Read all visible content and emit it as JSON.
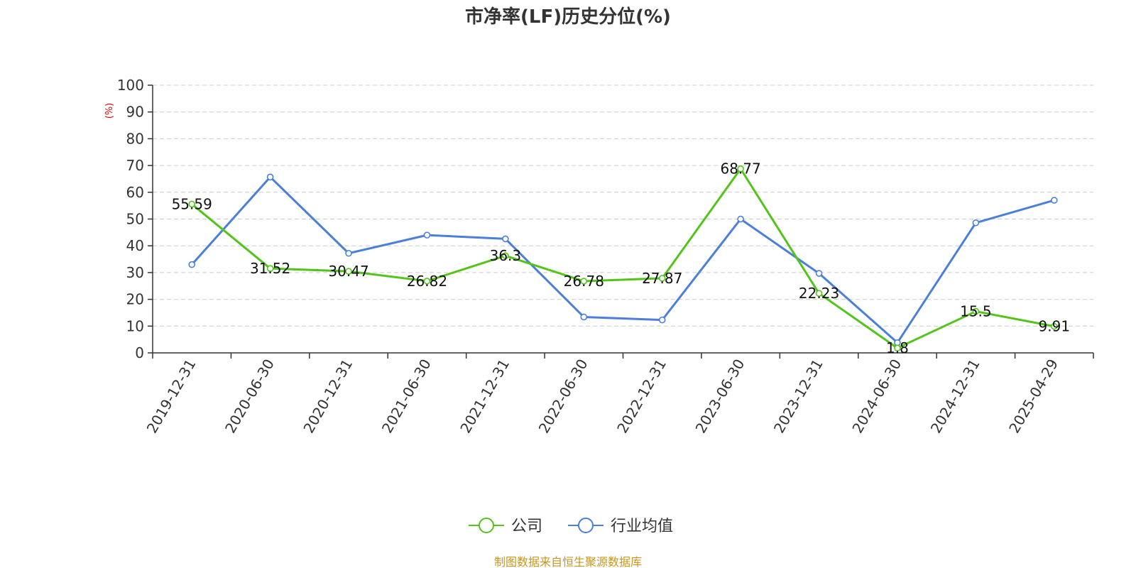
{
  "chart_data": {
    "type": "line",
    "title": "市净率(LF)历史分位(%)",
    "ylabel": "(%)",
    "xlabel": "",
    "ylim": [
      0,
      100
    ],
    "yticks": [
      0,
      10,
      20,
      30,
      40,
      50,
      60,
      70,
      80,
      90,
      100
    ],
    "grid": true,
    "legend_position": "bottom-center",
    "categories": [
      "2019-12-31",
      "2020-06-30",
      "2020-12-31",
      "2021-06-30",
      "2021-12-31",
      "2022-06-30",
      "2022-12-31",
      "2023-06-30",
      "2023-12-31",
      "2024-06-30",
      "2024-12-31",
      "2025-04-29"
    ],
    "series": [
      {
        "name": "公司",
        "color": "#52c41a",
        "values": [
          55.59,
          31.52,
          30.47,
          26.82,
          36.3,
          26.78,
          27.87,
          68.77,
          22.23,
          1.8,
          15.5,
          9.91
        ],
        "data_labels": [
          "55.59",
          "31.52",
          "30.47",
          "26.82",
          "36.3",
          "26.78",
          "27.87",
          "68.77",
          "22.23",
          "1.8",
          "15.5",
          "9.91"
        ]
      },
      {
        "name": "行业均值",
        "color": "#4a7fdc",
        "values": [
          33.0,
          65.7,
          37.2,
          44.0,
          42.6,
          13.4,
          12.3,
          50.0,
          29.7,
          3.8,
          48.6,
          57.0
        ]
      }
    ],
    "source": "制图数据来自恒生聚源数据库"
  }
}
